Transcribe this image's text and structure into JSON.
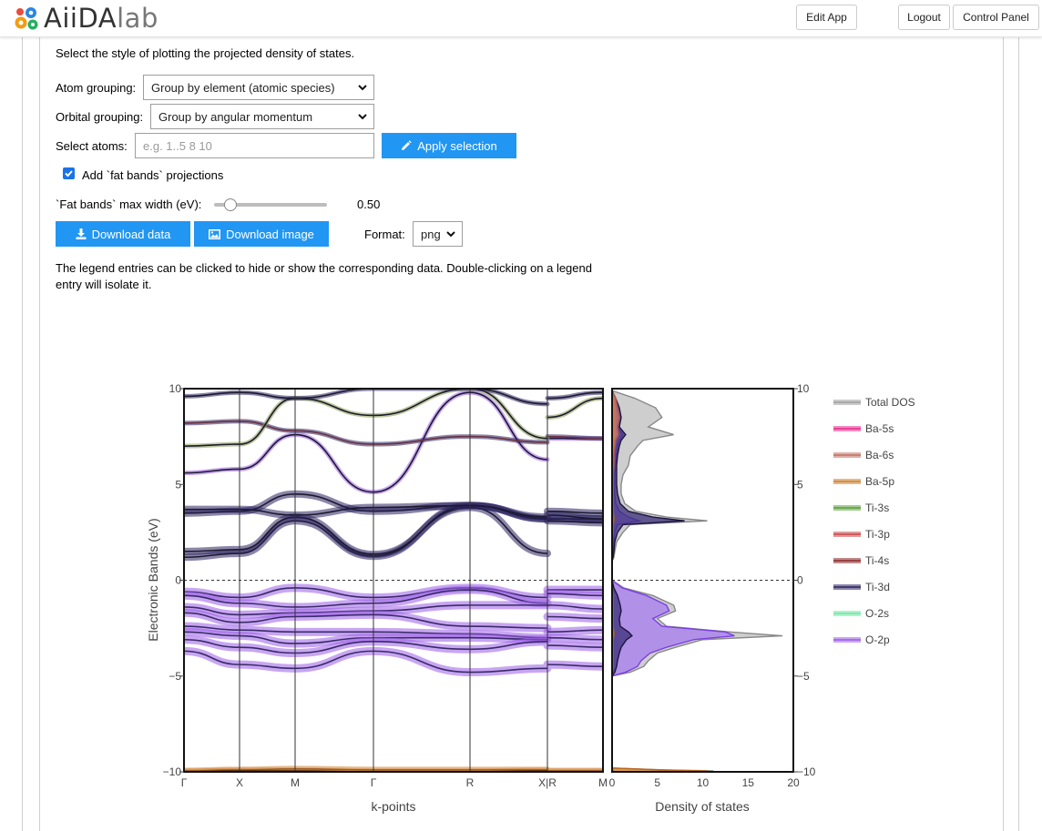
{
  "header": {
    "logo_text_main": "AiiDA",
    "logo_text_suffix": "lab",
    "edit_app": "Edit App",
    "logout": "Logout",
    "control_panel": "Control Panel"
  },
  "controls": {
    "intro": "Select the style of plotting the projected density of states.",
    "atom_grouping_label": "Atom grouping:",
    "atom_grouping_value": "Group by element (atomic species)",
    "orbital_grouping_label": "Orbital grouping:",
    "orbital_grouping_value": "Group by angular momentum",
    "select_atoms_label": "Select atoms:",
    "select_atoms_placeholder": "e.g. 1..5 8 10",
    "apply_selection": "Apply selection",
    "fat_bands_checkbox": "Add `fat bands` projections",
    "fat_bands_checked": true,
    "fat_bands_width_label": "`Fat bands` max width (eV):",
    "fat_bands_width_value": "0.50",
    "fat_bands_width_fraction": 0.1,
    "download_data": "Download data",
    "download_image": "Download image",
    "format_label": "Format:",
    "format_value": "png",
    "legend_help": "The legend entries can be clicked to hide or show the corresponding data. Double-clicking on a legend entry will isolate it."
  },
  "colors": {
    "accent": "#2196f3",
    "total_dos": "#9e9e9e",
    "Ba-5s": "#e7298a",
    "Ba-6s": "#c27060",
    "Ba-5p": "#d08030",
    "Ti-3s": "#5aa03a",
    "Ti-3p": "#c84848",
    "Ti-4s": "#8b2a2a",
    "Ti-3d": "#2c2160",
    "O-2s": "#6fe7a3",
    "O-2p": "#9b5ce8"
  },
  "chart_data": [
    {
      "type": "line",
      "title": "",
      "xlabel": "k-points",
      "ylabel": "Electronic Bands (eV)",
      "ylim": [
        -10,
        10
      ],
      "yticks": [
        "10",
        "5",
        "0",
        "−5",
        "−10"
      ],
      "x_ticks": [
        "Γ",
        "X",
        "M",
        "Γ",
        "R",
        "X|R",
        "M"
      ],
      "fermi_level": 0,
      "bands_conduction": [
        [
          1.2,
          1.4,
          3.1,
          1.25,
          3.9,
          3.2,
          3.2,
          3.2
        ],
        [
          1.5,
          1.6,
          3.3,
          1.35,
          3.8,
          1.4,
          3.1,
          3.0
        ],
        [
          3.5,
          3.6,
          4.5,
          3.6,
          3.9,
          3.2,
          3.4,
          3.2
        ],
        [
          3.7,
          3.7,
          3.4,
          3.8,
          3.9,
          3.3,
          3.6,
          3.5
        ],
        [
          5.6,
          5.8,
          7.6,
          4.6,
          9.8,
          6.3,
          7.4,
          7.4
        ],
        [
          8.2,
          8.3,
          7.8,
          7.1,
          7.5,
          7.2,
          7.5,
          7.4
        ],
        [
          7.0,
          7.1,
          9.5,
          8.6,
          10.0,
          7.4,
          8.5,
          9.5
        ],
        [
          9.6,
          9.8,
          9.5,
          10.0,
          10.0,
          9.2,
          9.5,
          9.8
        ]
      ],
      "bands_valence": [
        [
          -0.6,
          -0.9,
          -0.4,
          -0.9,
          -0.4,
          -0.9,
          -0.5,
          -0.5
        ],
        [
          -0.8,
          -1.2,
          -1.4,
          -1.2,
          -0.5,
          -1.2,
          -0.7,
          -0.8
        ],
        [
          -1.4,
          -1.8,
          -1.7,
          -1.6,
          -1.3,
          -1.3,
          -1.3,
          -1.5
        ],
        [
          -1.7,
          -2.2,
          -1.9,
          -1.8,
          -2.4,
          -2.5,
          -1.9,
          -2.0
        ],
        [
          -2.4,
          -2.6,
          -2.7,
          -2.7,
          -2.8,
          -3.0,
          -2.7,
          -2.6
        ],
        [
          -2.7,
          -2.9,
          -3.3,
          -3.0,
          -3.0,
          -3.1,
          -3.0,
          -3.1
        ],
        [
          -3.1,
          -3.5,
          -3.8,
          -3.2,
          -3.6,
          -3.2,
          -3.4,
          -3.5
        ],
        [
          -3.7,
          -4.4,
          -4.6,
          -3.7,
          -4.8,
          -4.6,
          -4.4,
          -4.5
        ]
      ],
      "bands_core": [
        [
          -9.95,
          -9.9,
          -9.85,
          -9.9,
          -9.9,
          -9.9,
          -9.95,
          -9.95
        ],
        [
          -10.0,
          -9.95,
          -9.95,
          -10.0,
          -10.0,
          -9.95,
          -10.0,
          -10.0
        ]
      ]
    },
    {
      "type": "area",
      "title": "",
      "xlabel": "Density of states",
      "xlim": [
        0,
        20
      ],
      "xticks": [
        "0",
        "5",
        "10",
        "15",
        "20"
      ],
      "ylim": [
        -10,
        10
      ],
      "yticks": [
        "10",
        "5",
        "0",
        "−5",
        "−10"
      ],
      "energies": [
        9.9,
        9.5,
        9.0,
        8.5,
        8.0,
        7.6,
        7.3,
        7.0,
        6.5,
        6.0,
        5.5,
        5.0,
        4.5,
        4.0,
        3.6,
        3.3,
        3.1,
        2.9,
        2.5,
        2.0,
        1.5,
        1.2,
        1.0,
        0.0,
        -0.4,
        -0.8,
        -1.3,
        -1.6,
        -2.0,
        -2.4,
        -2.7,
        -2.9,
        -3.1,
        -3.5,
        -3.8,
        -4.2,
        -4.5,
        -4.8,
        -5.0,
        -9.8,
        -9.9,
        -9.95,
        -10.0
      ],
      "legend": [
        "Total DOS",
        "Ba-5s",
        "Ba-6s",
        "Ba-5p",
        "Ti-3s",
        "Ti-3p",
        "Ti-4s",
        "Ti-3d",
        "O-2s",
        "O-2p"
      ],
      "legend_placement": "right",
      "series": [
        {
          "name": "Total DOS",
          "values": [
            0,
            2.5,
            4.8,
            5.5,
            4.0,
            6.8,
            3.4,
            2.8,
            2.0,
            1.8,
            1.2,
            1.0,
            1.0,
            1.4,
            2.6,
            6.0,
            10.5,
            2.0,
            1.2,
            0.5,
            0.3,
            0.2,
            0,
            0,
            1.3,
            4.5,
            6.8,
            7.0,
            5.0,
            6.0,
            13.0,
            18.8,
            10.0,
            7.0,
            5.0,
            4.0,
            3.5,
            2.0,
            0,
            0,
            6.0,
            11.2,
            0
          ]
        },
        {
          "name": "O-2p",
          "values": [
            0,
            0.3,
            0.5,
            0.8,
            0.6,
            1.2,
            0.8,
            0.6,
            0.5,
            0.4,
            0.3,
            0.3,
            0.3,
            0.4,
            0.8,
            1.8,
            3.0,
            0.6,
            0.3,
            0.2,
            0.1,
            0.1,
            0,
            0,
            1.1,
            3.8,
            6.0,
            6.3,
            4.5,
            5.5,
            12.5,
            13.5,
            9.0,
            6.0,
            4.2,
            3.2,
            2.8,
            1.5,
            0,
            0,
            0.1,
            0.1,
            0
          ]
        },
        {
          "name": "Ti-3d",
          "values": [
            0,
            0.4,
            0.8,
            1.0,
            0.8,
            1.5,
            1.0,
            0.8,
            0.6,
            0.5,
            0.5,
            0.5,
            0.6,
            0.9,
            1.8,
            4.5,
            8.0,
            1.2,
            0.6,
            0.3,
            0.2,
            0.1,
            0,
            0,
            0.2,
            0.6,
            0.9,
            1.0,
            0.8,
            0.9,
            1.8,
            2.2,
            1.6,
            1.0,
            0.8,
            0.6,
            0.5,
            0.3,
            0,
            0,
            0,
            0,
            0
          ]
        },
        {
          "name": "Ba-5p",
          "values": [
            0,
            0.2,
            0.3,
            0.3,
            0.3,
            0.4,
            0.2,
            0.2,
            0.1,
            0.1,
            0.1,
            0.1,
            0.1,
            0.1,
            0.1,
            0.2,
            0.2,
            0.1,
            0.1,
            0,
            0,
            0,
            0,
            0,
            0,
            0.1,
            0.1,
            0.1,
            0.1,
            0.1,
            0.2,
            0.2,
            0.1,
            0.1,
            0.1,
            0.1,
            0.1,
            0,
            0,
            0,
            5.5,
            10.5,
            0
          ]
        },
        {
          "name": "Ba-6s",
          "values": [
            0,
            0.4,
            0.6,
            0.8,
            0.6,
            0.7,
            0.4,
            0.3,
            0.2,
            0.2,
            0.1,
            0.1,
            0.1,
            0.1,
            0.1,
            0.1,
            0.1,
            0.1,
            0,
            0,
            0,
            0,
            0,
            0,
            0,
            0,
            0,
            0,
            0,
            0,
            0,
            0,
            0,
            0,
            0,
            0,
            0,
            0,
            0,
            0,
            0,
            0,
            0
          ]
        }
      ]
    }
  ]
}
